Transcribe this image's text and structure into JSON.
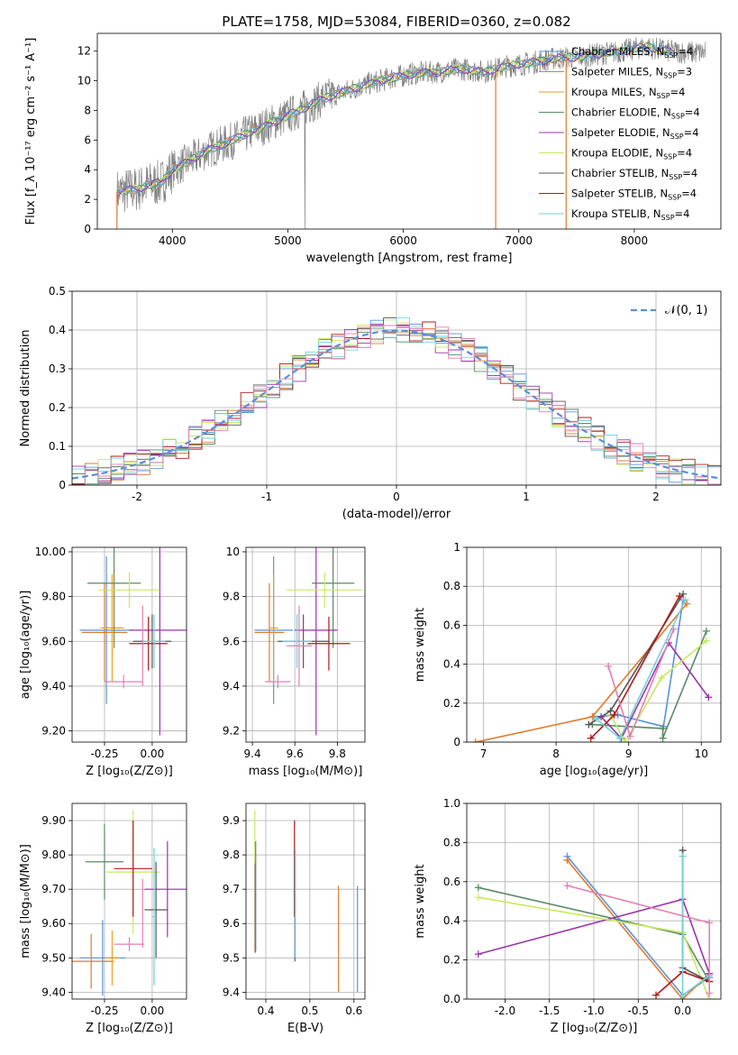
{
  "figure_title": "PLATE=1758, MJD=53084, FIBERID=0360, z=0.082",
  "colors": {
    "Chabrier MILES": "#5b93d9",
    "Salpeter MILES": "#e07a2e",
    "Kroupa MILES": "#e8a020",
    "Chabrier ELODIE": "#5a8a65",
    "Salpeter ELODIE": "#9a35a8",
    "Kroupa ELODIE": "#c8e860",
    "Chabrier STELIB": "#555555",
    "Salpeter STELIB": "#b01818",
    "Kroupa STELIB": "#72d2d8",
    "data": "#808080",
    "gauss": "#5b8fd6",
    "extra": "#e37fb4"
  },
  "chart_data": [
    {
      "id": "spectrum",
      "type": "line",
      "xlabel": "wavelength [Angstrom, rest frame]",
      "ylabel": "Flux [f_λ 10⁻¹⁷ erg cm⁻² s⁻¹ A⁻¹]",
      "xlim": [
        3350,
        8750
      ],
      "ylim": [
        0,
        13.2
      ],
      "xticks": [
        4000,
        5000,
        6000,
        7000,
        8000
      ],
      "yticks": [
        0,
        2,
        4,
        6,
        8,
        10,
        12
      ],
      "grid": false,
      "legend_position": "upper-right",
      "legend": [
        "Chabrier MILES, N_SSP=4",
        "Salpeter MILES, N_SSP=3",
        "Kroupa MILES, N_SSP=4",
        "Chabrier ELODIE, N_SSP=4",
        "Salpeter ELODIE, N_SSP=4",
        "Kroupa ELODIE, N_SSP=4",
        "Chabrier STELIB, N_SSP=4",
        "Salpeter STELIB, N_SSP=4",
        "Kroupa STELIB, N_SSP=4"
      ],
      "continuum": {
        "x": [
          3520,
          3600,
          3700,
          3800,
          3900,
          4000,
          4100,
          4200,
          4300,
          4500,
          4700,
          4900,
          5100,
          5300,
          5500,
          5700,
          5900,
          6100,
          6300,
          6500,
          6700,
          6900,
          7100,
          7300,
          7500,
          7700,
          7900,
          8100,
          8300,
          8500
        ],
        "y": [
          2.5,
          2.6,
          2.7,
          3.0,
          3.1,
          4.0,
          4.4,
          4.8,
          5.3,
          5.9,
          6.6,
          7.3,
          8.0,
          8.8,
          9.3,
          9.8,
          10.2,
          10.5,
          10.6,
          10.8,
          10.6,
          11.0,
          11.2,
          11.5,
          11.6,
          11.8,
          12.0,
          12.3,
          12.0,
          11.9
        ]
      }
    },
    {
      "id": "residuals",
      "type": "line",
      "xlabel": "(data-model)/error",
      "ylabel": "Normed distribution",
      "xlim": [
        -2.5,
        2.5
      ],
      "ylim": [
        0,
        0.5
      ],
      "xticks": [
        -2,
        -1,
        0,
        1,
        2
      ],
      "yticks": [
        0.0,
        0.1,
        0.2,
        0.3,
        0.4,
        0.5
      ],
      "grid": true,
      "legend_position": "upper-right",
      "legend": [
        "𝒩(0, 1)"
      ]
    },
    {
      "id": "age_vs_Z",
      "type": "scatter",
      "xlabel": "Z [log₁₀(Z/Z⊙)]",
      "ylabel": "age  [log₁₀(age/yr)]",
      "xlim": [
        -0.42,
        0.18
      ],
      "ylim": [
        9.15,
        10.02
      ],
      "xticks": [
        -0.25,
        0.0
      ],
      "yticks": [
        9.2,
        9.4,
        9.6,
        9.8,
        10.0
      ],
      "grid": true,
      "points": [
        {
          "model": "Chabrier MILES",
          "x": -0.24,
          "xerr": 0.14,
          "y": 9.65,
          "yerr": 0.33
        },
        {
          "model": "Salpeter MILES",
          "x": -0.25,
          "xerr": 0.12,
          "y": 9.64,
          "yerr": 0.22
        },
        {
          "model": "Kroupa MILES",
          "x": -0.21,
          "xerr": 0.06,
          "y": 9.66,
          "yerr": 0.24
        },
        {
          "model": "Chabrier ELODIE",
          "x": -0.2,
          "xerr": 0.14,
          "y": 9.86,
          "yerr": 0.29
        },
        {
          "model": "Salpeter ELODIE",
          "x": 0.04,
          "xerr": 0.16,
          "y": 9.65,
          "yerr": 0.47
        },
        {
          "model": "Kroupa ELODIE",
          "x": -0.12,
          "xerr": 0.16,
          "y": 9.83,
          "yerr": 0.08
        },
        {
          "model": "Chabrier STELIB",
          "x": 0.0,
          "xerr": 0.1,
          "y": 9.6,
          "yerr": 0.12
        },
        {
          "model": "Salpeter STELIB",
          "x": -0.02,
          "xerr": 0.1,
          "y": 9.59,
          "yerr": 0.12
        },
        {
          "model": "Kroupa STELIB",
          "x": 0.01,
          "xerr": 0.06,
          "y": 9.6,
          "yerr": 0.12
        },
        {
          "model": "extra",
          "x": -0.15,
          "xerr": 0.1,
          "y": 9.42,
          "yerr": 0.03
        },
        {
          "model": "extra",
          "x": -0.05,
          "xerr": 0.0,
          "y": 9.58,
          "yerr": 0.18
        }
      ]
    },
    {
      "id": "age_vs_mass",
      "type": "scatter",
      "xlabel": "mass [log₁₀(M/M⊙)]",
      "ylabel": "",
      "xlim": [
        9.37,
        9.93
      ],
      "ylim": [
        9.15,
        10.02
      ],
      "xticks": [
        9.4,
        9.6,
        9.8
      ],
      "yticks": [
        9.2,
        9.4,
        9.6,
        9.8,
        10.0
      ],
      "grid": true,
      "points": [
        {
          "model": "Chabrier MILES",
          "x": 9.5,
          "xerr": 0.09,
          "y": 9.65,
          "yerr": 0.33
        },
        {
          "model": "Salpeter MILES",
          "x": 9.48,
          "xerr": 0.07,
          "y": 9.64,
          "yerr": 0.22
        },
        {
          "model": "Kroupa MILES",
          "x": 9.5,
          "xerr": 0.02,
          "y": 9.66,
          "yerr": 0.24
        },
        {
          "model": "Chabrier ELODIE",
          "x": 9.78,
          "xerr": 0.1,
          "y": 9.86,
          "yerr": 0.29
        },
        {
          "model": "Salpeter ELODIE",
          "x": 9.7,
          "xerr": 0.1,
          "y": 9.65,
          "yerr": 0.47
        },
        {
          "model": "Kroupa ELODIE",
          "x": 9.74,
          "xerr": 0.18,
          "y": 9.83,
          "yerr": 0.08
        },
        {
          "model": "Chabrier STELIB",
          "x": 9.64,
          "xerr": 0.12,
          "y": 9.6,
          "yerr": 0.12
        },
        {
          "model": "Salpeter STELIB",
          "x": 9.76,
          "xerr": 0.1,
          "y": 9.59,
          "yerr": 0.12
        },
        {
          "model": "Kroupa STELIB",
          "x": 9.61,
          "xerr": 0.07,
          "y": 9.6,
          "yerr": 0.12
        },
        {
          "model": "extra",
          "x": 9.52,
          "xerr": 0.06,
          "y": 9.42,
          "yerr": 0.03
        },
        {
          "model": "extra",
          "x": 9.62,
          "xerr": 0.06,
          "y": 9.58,
          "yerr": 0.18
        }
      ]
    },
    {
      "id": "weight_vs_age",
      "type": "line",
      "xlabel": "age  [log₁₀(age/yr)]",
      "ylabel": "mass weight",
      "xlim": [
        6.77,
        10.27
      ],
      "ylim": [
        0,
        1.0
      ],
      "xticks": [
        7,
        8,
        9,
        10
      ],
      "yticks": [
        0.0,
        0.2,
        0.4,
        0.6,
        0.8,
        1.0
      ],
      "grid": true,
      "series": [
        {
          "model": "Chabrier MILES",
          "x": [
            8.52,
            8.85,
            9.48,
            9.75
          ],
          "y": [
            0.13,
            0.14,
            0.08,
            0.73
          ]
        },
        {
          "model": "Salpeter MILES",
          "x": [
            6.89,
            8.5,
            9.8
          ],
          "y": [
            0.0,
            0.13,
            0.71
          ]
        },
        {
          "model": "Chabrier ELODIE",
          "x": [
            8.5,
            9.47,
            9.47,
            10.07
          ],
          "y": [
            0.09,
            0.07,
            0.02,
            0.57
          ]
        },
        {
          "model": "Salpeter ELODIE",
          "x": [
            8.62,
            8.9,
            9.55,
            10.1
          ],
          "y": [
            0.13,
            0.02,
            0.51,
            0.23
          ]
        },
        {
          "model": "Kroupa ELODIE",
          "x": [
            8.75,
            8.95,
            9.45,
            10.07
          ],
          "y": [
            0.14,
            0.0,
            0.33,
            0.52
          ]
        },
        {
          "model": "Chabrier STELIB",
          "x": [
            8.45,
            8.75,
            9.75
          ],
          "y": [
            0.09,
            0.16,
            0.76
          ]
        },
        {
          "model": "Salpeter STELIB",
          "x": [
            8.48,
            8.8,
            9.7
          ],
          "y": [
            0.02,
            0.14,
            0.75
          ]
        },
        {
          "model": "Kroupa STELIB",
          "x": [
            8.55,
            8.88,
            9.78
          ],
          "y": [
            0.12,
            0.02,
            0.73
          ]
        },
        {
          "model": "extra",
          "x": [
            8.72,
            9.02,
            9.62
          ],
          "y": [
            0.39,
            0.03,
            0.58
          ]
        }
      ]
    },
    {
      "id": "mass_vs_Z",
      "type": "scatter",
      "xlabel": "Z [log₁₀(Z/Z⊙)]",
      "ylabel": "mass [log₁₀(M/M⊙)]",
      "xlim": [
        -0.42,
        0.18
      ],
      "ylim": [
        9.38,
        9.95
      ],
      "xticks": [
        -0.25,
        0.0
      ],
      "yticks": [
        9.4,
        9.5,
        9.6,
        9.7,
        9.8,
        9.9
      ],
      "grid": true,
      "points": [
        {
          "model": "Chabrier MILES",
          "x": -0.26,
          "xerr": 0.12,
          "y": 9.5,
          "yerr": 0.11
        },
        {
          "model": "Salpeter MILES",
          "x": -0.32,
          "xerr": 0.12,
          "y": 9.49,
          "yerr": 0.08
        },
        {
          "model": "Kroupa MILES",
          "x": -0.21,
          "xerr": 0.04,
          "y": 9.5,
          "yerr": 0.08
        },
        {
          "model": "Chabrier ELODIE",
          "x": -0.25,
          "xerr": 0.1,
          "y": 9.78,
          "yerr": 0.11
        },
        {
          "model": "Salpeter ELODIE",
          "x": 0.08,
          "xerr": 0.12,
          "y": 9.7,
          "yerr": 0.14
        },
        {
          "model": "Kroupa ELODIE",
          "x": -0.1,
          "xerr": 0.14,
          "y": 9.75,
          "yerr": 0.18
        },
        {
          "model": "Chabrier STELIB",
          "x": 0.02,
          "xerr": 0.06,
          "y": 9.64,
          "yerr": 0.14
        },
        {
          "model": "Salpeter STELIB",
          "x": -0.1,
          "xerr": 0.1,
          "y": 9.76,
          "yerr": 0.14
        },
        {
          "model": "Kroupa STELIB",
          "x": 0.01,
          "xerr": 0.01,
          "y": 9.62,
          "yerr": 0.2
        },
        {
          "model": "extra",
          "x": -0.12,
          "xerr": 0.08,
          "y": 9.54,
          "yerr": 0.02
        },
        {
          "model": "extra",
          "x": -0.05,
          "xerr": 0.0,
          "y": 9.63,
          "yerr": 0.1
        }
      ]
    },
    {
      "id": "mass_vs_ebv",
      "type": "scatter",
      "xlabel": "E(B-V)",
      "ylabel": "",
      "xlim": [
        0.355,
        0.625
      ],
      "ylim": [
        9.38,
        9.95
      ],
      "xticks": [
        0.4,
        0.5,
        0.6
      ],
      "yticks": [
        9.4,
        9.5,
        9.6,
        9.7,
        9.8,
        9.9
      ],
      "grid": true,
      "points": [
        {
          "model": "Chabrier MILES",
          "x": 0.608,
          "xerr": 0.0,
          "y": 9.555,
          "yerr": 0.155
        },
        {
          "model": "Salpeter MILES",
          "x": 0.565,
          "xerr": 0.0,
          "y": 9.555,
          "yerr": 0.155
        },
        {
          "model": "Kroupa ELODIE",
          "x": 0.375,
          "xerr": 0.0,
          "y": 9.725,
          "yerr": 0.205
        },
        {
          "model": "Salpeter ELODIE",
          "x": 0.376,
          "xerr": 0.0,
          "y": 9.645,
          "yerr": 0.13
        },
        {
          "model": "Chabrier ELODIE",
          "x": 0.377,
          "xerr": 0.0,
          "y": 9.68,
          "yerr": 0.16
        },
        {
          "model": "Salpeter STELIB",
          "x": 0.465,
          "xerr": 0.0,
          "y": 9.76,
          "yerr": 0.14
        },
        {
          "model": "Chabrier STELIB",
          "x": 0.466,
          "xerr": 0.0,
          "y": 9.65,
          "yerr": 0.16
        },
        {
          "model": "Kroupa STELIB",
          "x": 0.467,
          "xerr": 0.0,
          "y": 9.66,
          "yerr": 0.16
        }
      ]
    },
    {
      "id": "weight_vs_Z",
      "type": "line",
      "xlabel": "Z [log₁₀(Z/Z⊙)]",
      "ylabel": "mass weight",
      "xlim": [
        -2.43,
        0.43
      ],
      "ylim": [
        0,
        1.0
      ],
      "xticks": [
        -2.0,
        -1.5,
        -1.0,
        -0.5,
        0.0
      ],
      "yticks": [
        0.0,
        0.2,
        0.4,
        0.6,
        0.8,
        1.0
      ],
      "grid": true,
      "series": [
        {
          "model": "Chabrier MILES",
          "x": [
            -1.3,
            0.0,
            0.3
          ],
          "y": [
            0.73,
            0.02,
            0.11
          ]
        },
        {
          "model": "Salpeter MILES",
          "x": [
            -1.3,
            0.0,
            0.3
          ],
          "y": [
            0.71,
            0.0,
            0.13
          ]
        },
        {
          "model": "Chabrier ELODIE",
          "x": [
            -2.3,
            0.0,
            0.3
          ],
          "y": [
            0.57,
            0.33,
            0.09
          ]
        },
        {
          "model": "Salpeter ELODIE",
          "x": [
            -2.3,
            0.0,
            0.3
          ],
          "y": [
            0.23,
            0.51,
            0.13
          ]
        },
        {
          "model": "Kroupa ELODIE",
          "x": [
            -2.3,
            0.0,
            0.3
          ],
          "y": [
            0.52,
            0.34,
            0.0
          ]
        },
        {
          "model": "Chabrier STELIB",
          "x": [
            0.0,
            0.0,
            0.3
          ],
          "y": [
            0.76,
            0.16,
            0.09
          ]
        },
        {
          "model": "Salpeter STELIB",
          "x": [
            -0.3,
            0.0,
            0.3
          ],
          "y": [
            0.02,
            0.14,
            0.09
          ]
        },
        {
          "model": "Kroupa STELIB",
          "x": [
            0.0,
            0.0,
            0.3
          ],
          "y": [
            0.73,
            0.02,
            0.12
          ]
        },
        {
          "model": "extra",
          "x": [
            -1.3,
            0.3,
            0.3
          ],
          "y": [
            0.58,
            0.39,
            0.03
          ]
        }
      ]
    }
  ]
}
